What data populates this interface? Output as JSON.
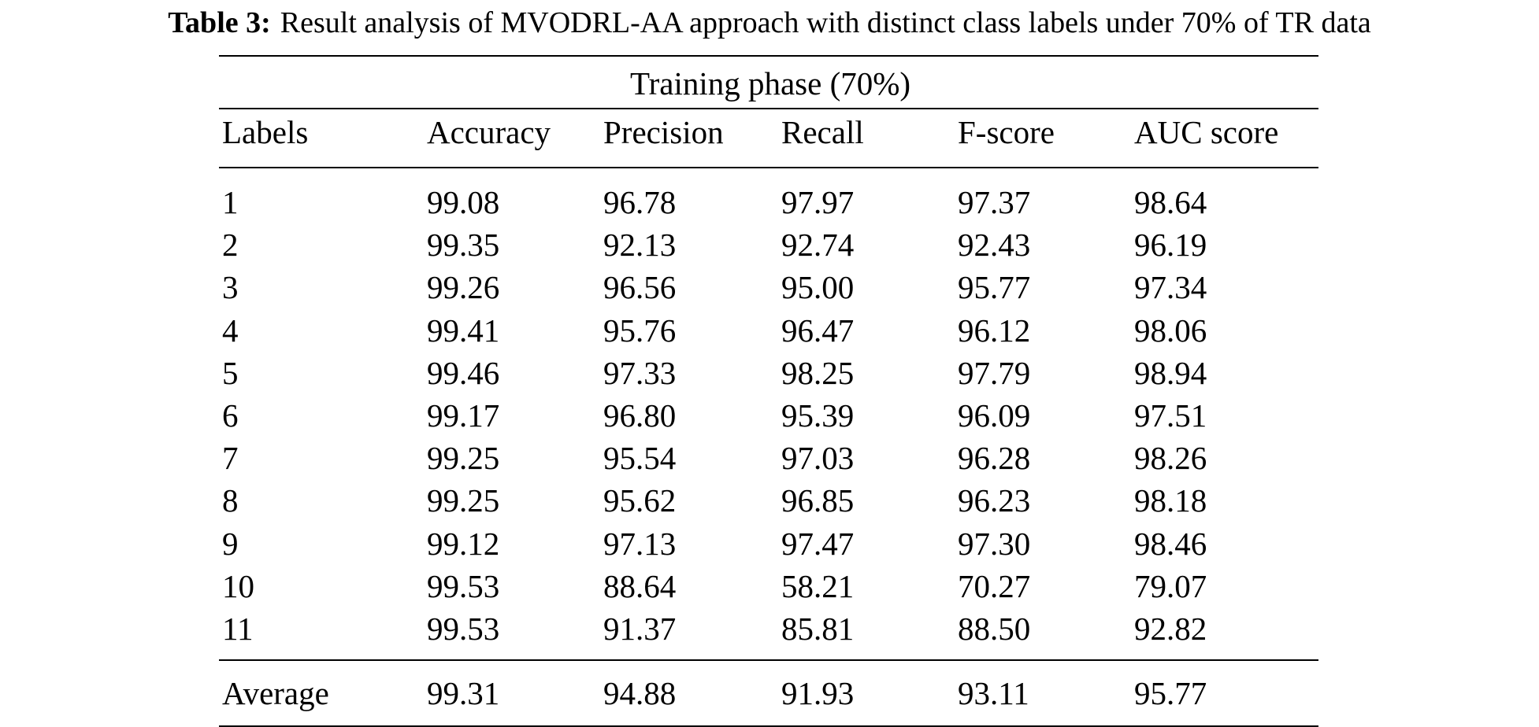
{
  "caption": {
    "label": "Table 3:",
    "text": "Result analysis of MVODRL-AA approach with distinct class labels under 70% of TR data"
  },
  "table": {
    "phase_header": "Training phase (70%)",
    "columns": [
      "Labels",
      "Accuracy",
      "Precision",
      "Recall",
      "F-score",
      "AUC score"
    ],
    "rows": [
      [
        "1",
        "99.08",
        "96.78",
        "97.97",
        "97.37",
        "98.64"
      ],
      [
        "2",
        "99.35",
        "92.13",
        "92.74",
        "92.43",
        "96.19"
      ],
      [
        "3",
        "99.26",
        "96.56",
        "95.00",
        "95.77",
        "97.34"
      ],
      [
        "4",
        "99.41",
        "95.76",
        "96.47",
        "96.12",
        "98.06"
      ],
      [
        "5",
        "99.46",
        "97.33",
        "98.25",
        "97.79",
        "98.94"
      ],
      [
        "6",
        "99.17",
        "96.80",
        "95.39",
        "96.09",
        "97.51"
      ],
      [
        "7",
        "99.25",
        "95.54",
        "97.03",
        "96.28",
        "98.26"
      ],
      [
        "8",
        "99.25",
        "95.62",
        "96.85",
        "96.23",
        "98.18"
      ],
      [
        "9",
        "99.12",
        "97.13",
        "97.47",
        "97.30",
        "98.46"
      ],
      [
        "10",
        "99.53",
        "88.64",
        "58.21",
        "70.27",
        "79.07"
      ],
      [
        "11",
        "99.53",
        "91.37",
        "85.81",
        "88.50",
        "92.82"
      ]
    ],
    "average": [
      "Average",
      "99.31",
      "94.88",
      "91.93",
      "93.11",
      "95.77"
    ]
  }
}
